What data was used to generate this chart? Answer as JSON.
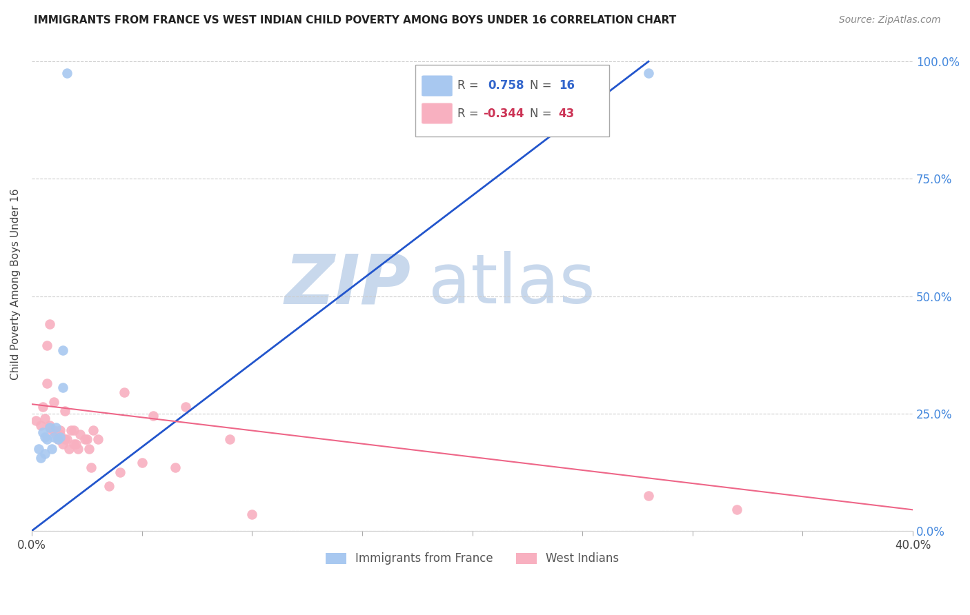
{
  "title": "IMMIGRANTS FROM FRANCE VS WEST INDIAN CHILD POVERTY AMONG BOYS UNDER 16 CORRELATION CHART",
  "source": "Source: ZipAtlas.com",
  "ylabel": "Child Poverty Among Boys Under 16",
  "ytick_labels": [
    "0.0%",
    "25.0%",
    "50.0%",
    "75.0%",
    "100.0%"
  ],
  "ytick_values": [
    0.0,
    0.25,
    0.5,
    0.75,
    1.0
  ],
  "xlim": [
    0.0,
    0.4
  ],
  "ylim": [
    0.0,
    1.05
  ],
  "r_blue": "0.758",
  "n_blue": "16",
  "r_pink": "-0.344",
  "n_pink": "43",
  "blue_color": "#a8c8f0",
  "pink_color": "#f8b0c0",
  "blue_line_color": "#2255cc",
  "pink_line_color": "#ee6688",
  "watermark_zip_color": "#c8d8ec",
  "watermark_atlas_color": "#c8d8ec",
  "background_color": "#ffffff",
  "grid_color": "#cccccc",
  "blue_scatter_x": [
    0.003,
    0.004,
    0.005,
    0.006,
    0.006,
    0.007,
    0.008,
    0.009,
    0.01,
    0.011,
    0.012,
    0.013,
    0.014,
    0.014,
    0.016,
    0.28
  ],
  "blue_scatter_y": [
    0.175,
    0.155,
    0.21,
    0.165,
    0.2,
    0.195,
    0.22,
    0.175,
    0.2,
    0.22,
    0.195,
    0.2,
    0.305,
    0.385,
    0.975,
    0.975
  ],
  "blue_line_x": [
    0.0,
    0.28
  ],
  "blue_line_y": [
    0.0,
    1.0
  ],
  "pink_scatter_x": [
    0.002,
    0.004,
    0.005,
    0.006,
    0.007,
    0.007,
    0.008,
    0.008,
    0.009,
    0.01,
    0.01,
    0.011,
    0.012,
    0.013,
    0.013,
    0.014,
    0.015,
    0.015,
    0.016,
    0.017,
    0.018,
    0.019,
    0.019,
    0.02,
    0.021,
    0.022,
    0.024,
    0.025,
    0.026,
    0.027,
    0.028,
    0.03,
    0.035,
    0.04,
    0.042,
    0.05,
    0.055,
    0.065,
    0.07,
    0.09,
    0.1,
    0.28,
    0.32
  ],
  "pink_scatter_y": [
    0.235,
    0.225,
    0.265,
    0.24,
    0.315,
    0.395,
    0.44,
    0.225,
    0.215,
    0.215,
    0.275,
    0.205,
    0.195,
    0.215,
    0.205,
    0.185,
    0.255,
    0.195,
    0.195,
    0.175,
    0.215,
    0.185,
    0.215,
    0.185,
    0.175,
    0.205,
    0.195,
    0.195,
    0.175,
    0.135,
    0.215,
    0.195,
    0.095,
    0.125,
    0.295,
    0.145,
    0.245,
    0.135,
    0.265,
    0.195,
    0.035,
    0.075,
    0.045
  ],
  "pink_line_x": [
    0.0,
    0.4
  ],
  "pink_line_y": [
    0.27,
    0.045
  ]
}
